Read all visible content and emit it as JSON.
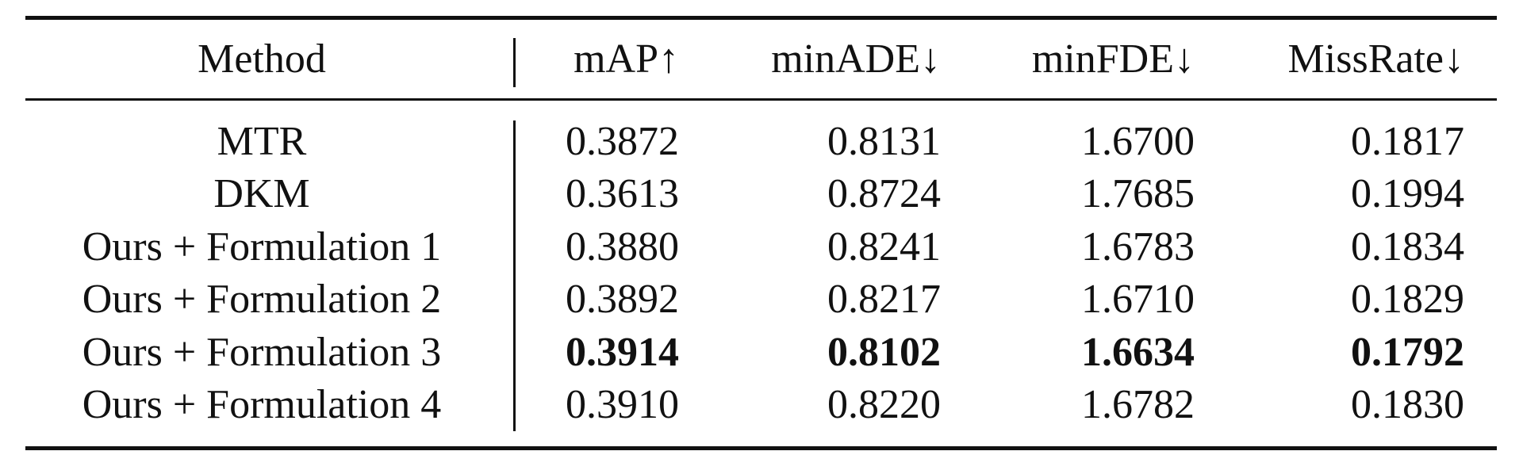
{
  "table": {
    "headers": {
      "method": "Method",
      "map": "mAP↑",
      "minade": "minADE↓",
      "minfde": "minFDE↓",
      "missrate": "MissRate↓"
    },
    "rows": [
      {
        "method": "MTR",
        "map": "0.3872",
        "minade": "0.8131",
        "minfde": "1.6700",
        "missrate": "0.1817",
        "bold": false
      },
      {
        "method": "DKM",
        "map": "0.3613",
        "minade": "0.8724",
        "minfde": "1.7685",
        "missrate": "0.1994",
        "bold": false
      },
      {
        "method": "Ours + Formulation 1",
        "map": "0.3880",
        "minade": "0.8241",
        "minfde": "1.6783",
        "missrate": "0.1834",
        "bold": false
      },
      {
        "method": "Ours + Formulation 2",
        "map": "0.3892",
        "minade": "0.8217",
        "minfde": "1.6710",
        "missrate": "0.1829",
        "bold": false
      },
      {
        "method": "Ours + Formulation 3",
        "map": "0.3914",
        "minade": "0.8102",
        "minfde": "1.6634",
        "missrate": "0.1792",
        "bold": true
      },
      {
        "method": "Ours + Formulation 4",
        "map": "0.3910",
        "minade": "0.8220",
        "minfde": "1.6782",
        "missrate": "0.1830",
        "bold": false
      }
    ]
  }
}
